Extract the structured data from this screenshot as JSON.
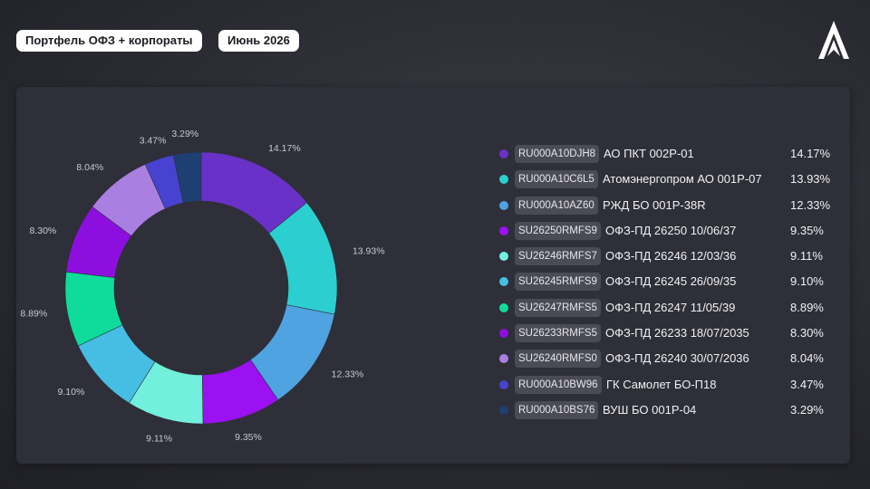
{
  "header": {
    "title": "Портфель ОФЗ + корпораты",
    "date": "Июнь 2026"
  },
  "logo": {
    "icon": "chevron-up-logo-icon"
  },
  "colors": {
    "background": "#2b2c33",
    "panel": "#2e2f38",
    "text": "#f1f1f3",
    "label": "#c9c9cf"
  },
  "chart_data": {
    "type": "pie",
    "variant": "donut",
    "title": "",
    "legend_position": "right",
    "slices": [
      {
        "code": "RU000A10DJH8",
        "name": "АО ПКТ 002Р-01",
        "value": 14.17,
        "label": "14.17%",
        "color": "#6a31c9"
      },
      {
        "code": "RU000A10C6L5",
        "name": "Атомэнергопром АО 001Р-07",
        "value": 13.93,
        "label": "13.93%",
        "color": "#2ccfcf"
      },
      {
        "code": "RU000A10AZ60",
        "name": "РЖД БО 001Р-38R",
        "value": 12.33,
        "label": "12.33%",
        "color": "#4ea3e0"
      },
      {
        "code": "SU26250RMFS9",
        "name": "ОФЗ-ПД 26250 10/06/37",
        "value": 9.35,
        "label": "9.35%",
        "color": "#9b11f2"
      },
      {
        "code": "SU26246RMFS7",
        "name": "ОФЗ-ПД 26246 12/03/36",
        "value": 9.11,
        "label": "9.11%",
        "color": "#72f0dc"
      },
      {
        "code": "SU26245RMFS9",
        "name": "ОФЗ-ПД 26245 26/09/35",
        "value": 9.1,
        "label": "9.10%",
        "color": "#46bde3"
      },
      {
        "code": "SU26247RMFS5",
        "name": "ОФЗ-ПД 26247 11/05/39",
        "value": 8.89,
        "label": "8.89%",
        "color": "#0fdc9b"
      },
      {
        "code": "SU26233RMFS5",
        "name": "ОФЗ-ПД 26233 18/07/2035",
        "value": 8.3,
        "label": "8.30%",
        "color": "#8d0fe0"
      },
      {
        "code": "SU26240RMFS0",
        "name": "ОФЗ-ПД 26240 30/07/2036",
        "value": 8.04,
        "label": "8.04%",
        "color": "#a97fe2"
      },
      {
        "code": "RU000A10BW96",
        "name": "ГК Самолет БО-П18",
        "value": 3.47,
        "label": "3.47%",
        "color": "#4742cf"
      },
      {
        "code": "RU000A10BS76",
        "name": "ВУШ БО 001Р-04",
        "value": 3.29,
        "label": "3.29%",
        "color": "#1e3f72"
      }
    ]
  }
}
